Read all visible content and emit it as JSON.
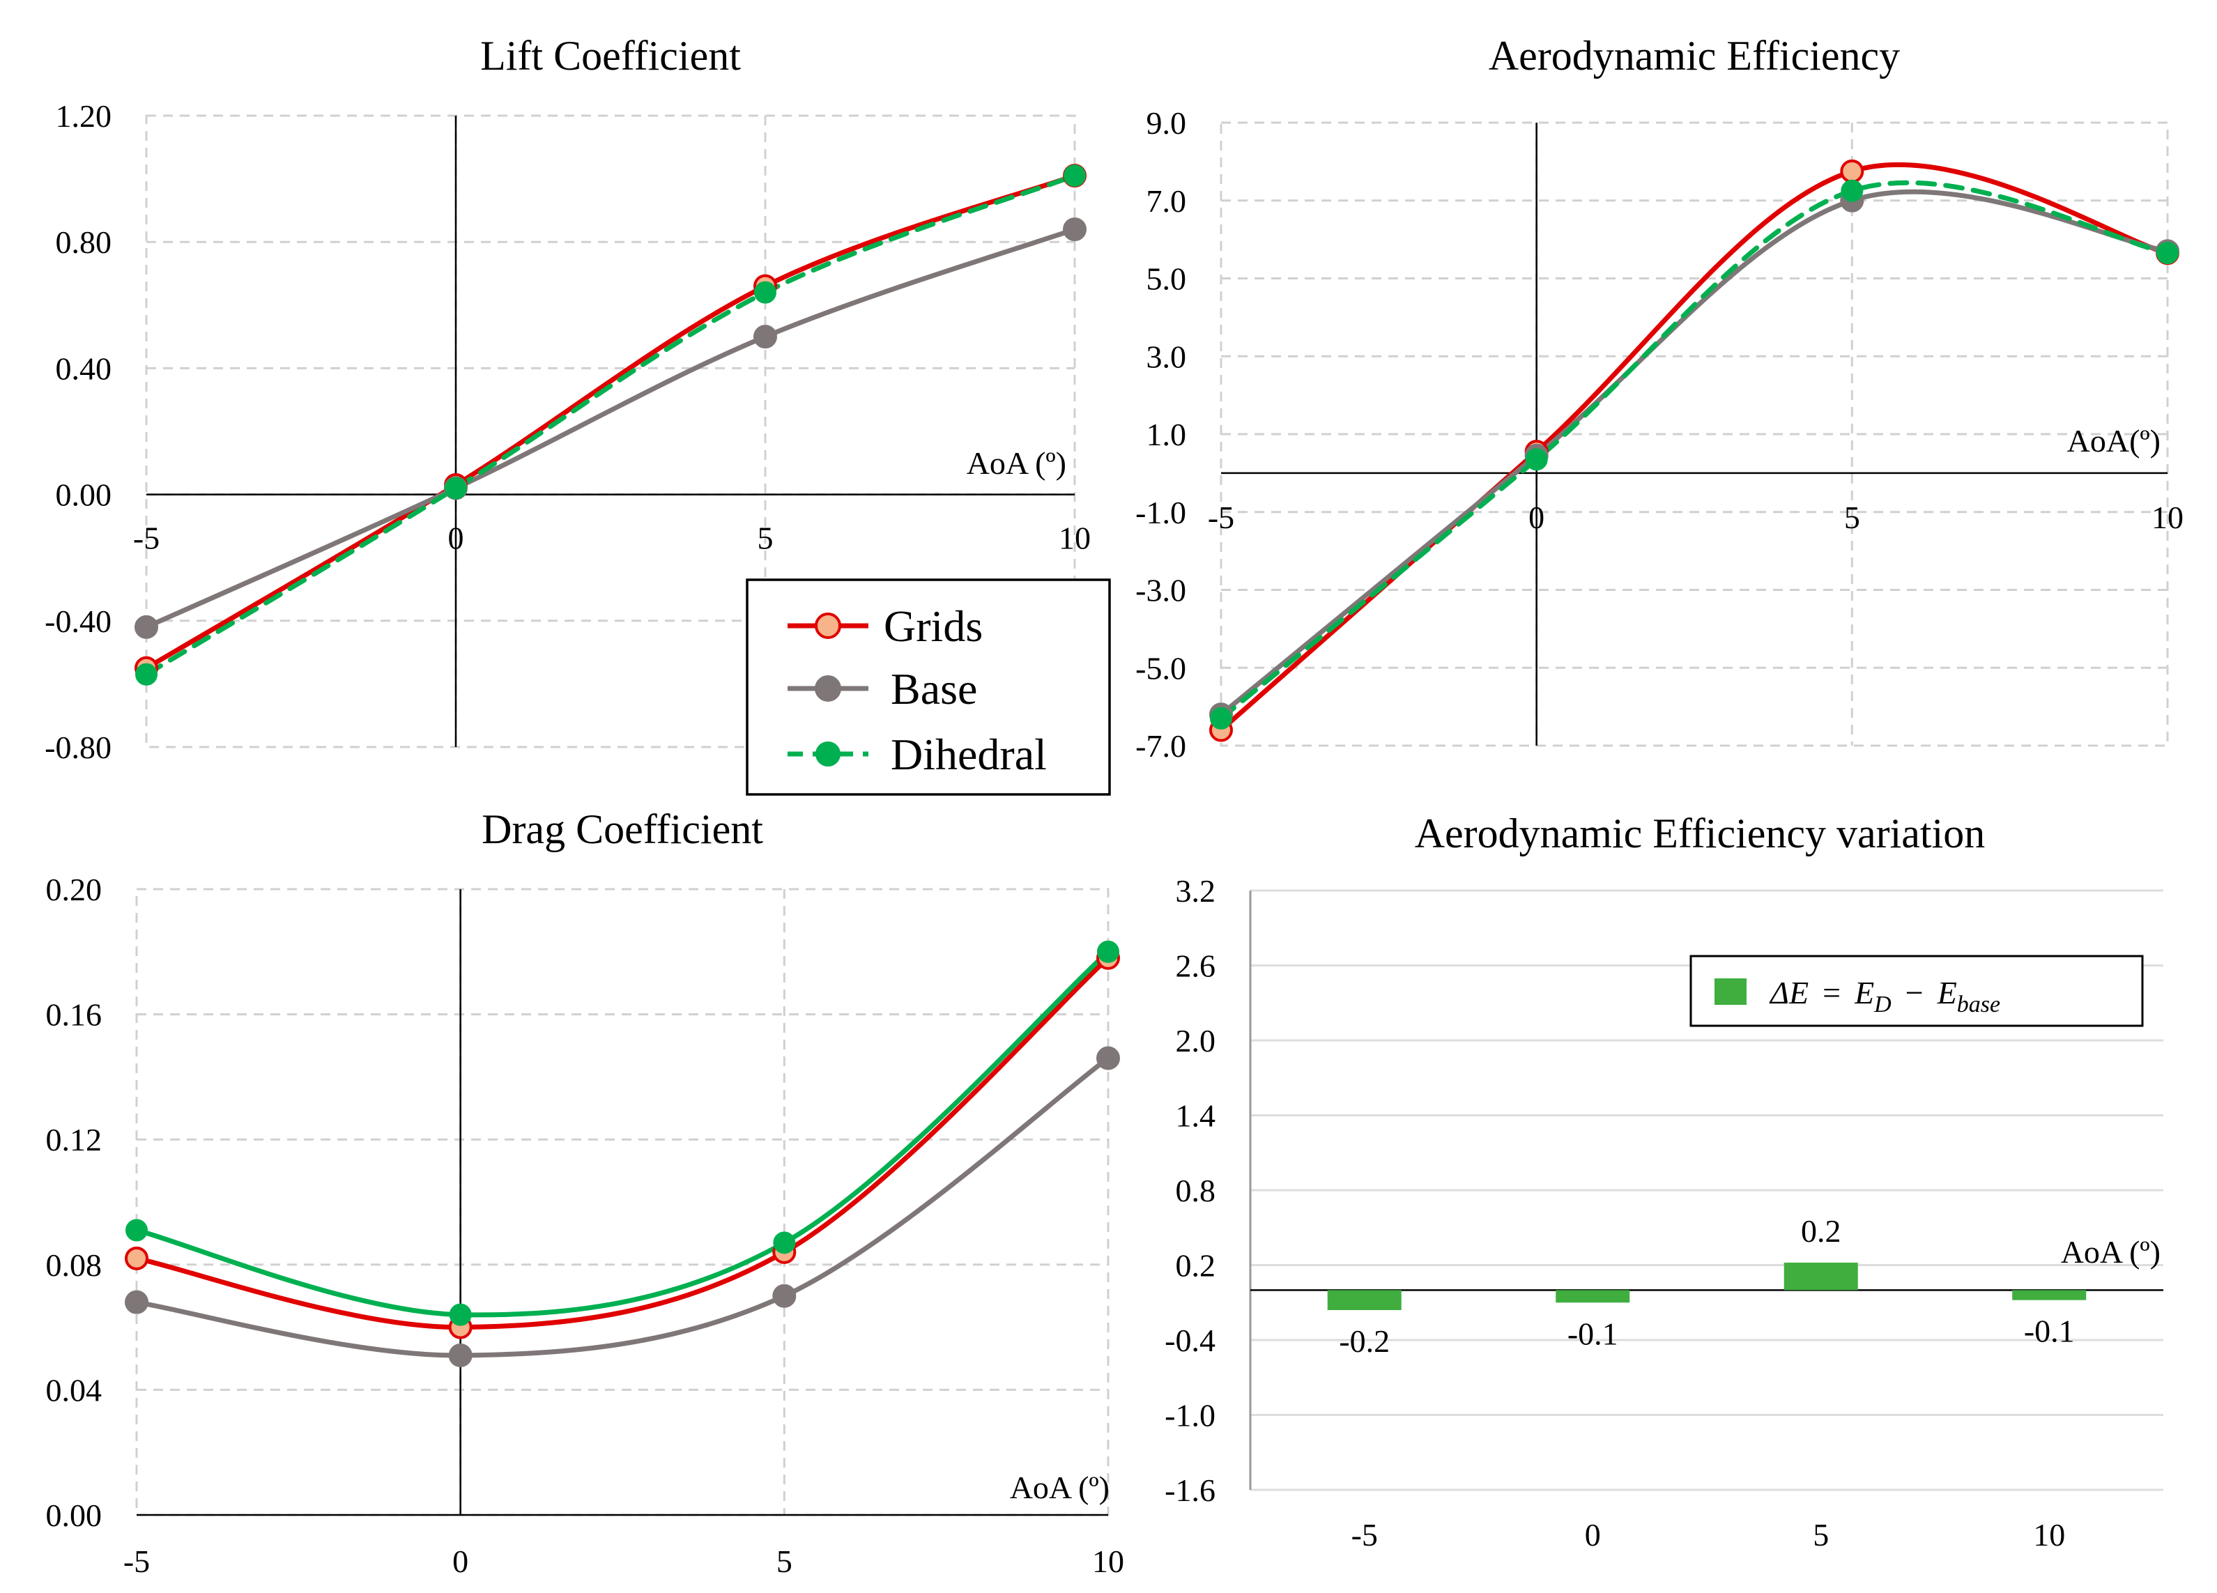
{
  "colors": {
    "grids": "#e00000",
    "grids_marker": "#f7b38a",
    "base": "#7f7777",
    "dihedral": "#00b050",
    "bar": "#3fae3f"
  },
  "legend": {
    "items": [
      "Grids",
      "Base",
      "Dihedral"
    ]
  },
  "chart_data": [
    {
      "id": "lift",
      "type": "line",
      "title": "Lift Coefficient",
      "xlabel": "AoA (º)",
      "x": [
        -5,
        0,
        5,
        10
      ],
      "xticks": [
        "-5",
        "0",
        "5",
        "10"
      ],
      "ylim": [
        -0.8,
        1.2
      ],
      "yticks": [
        1.2,
        0.8,
        0.4,
        0.0,
        -0.4,
        -0.8
      ],
      "ytick_labels": [
        "1.20",
        "0.80",
        "0.40",
        "0.00",
        "-0.40",
        "-0.80"
      ],
      "series": [
        {
          "name": "Grids",
          "values": [
            -0.55,
            0.03,
            0.66,
            1.01
          ]
        },
        {
          "name": "Base",
          "values": [
            -0.42,
            0.02,
            0.5,
            0.84
          ]
        },
        {
          "name": "Dihedral",
          "values": [
            -0.57,
            0.02,
            0.64,
            1.01
          ]
        }
      ]
    },
    {
      "id": "eff",
      "type": "line",
      "title": "Aerodynamic Efficiency",
      "xlabel": "AoA(º)",
      "x": [
        -5,
        0,
        5,
        10
      ],
      "xticks": [
        "-5",
        "0",
        "5",
        "10"
      ],
      "ylim": [
        -7.0,
        9.0
      ],
      "yticks": [
        9,
        7,
        5,
        3,
        1,
        -1,
        -3,
        -5,
        -7
      ],
      "ytick_labels": [
        "9.0",
        "7.0",
        "5.0",
        "3.0",
        "1.0",
        "-1.0",
        "-3.0",
        "-5.0",
        "-7.0"
      ],
      "series": [
        {
          "name": "Grids",
          "values": [
            -6.6,
            0.55,
            7.75,
            5.65
          ]
        },
        {
          "name": "Base",
          "values": [
            -6.2,
            0.45,
            7.0,
            5.7
          ]
        },
        {
          "name": "Dihedral",
          "values": [
            -6.3,
            0.35,
            7.25,
            5.65
          ]
        }
      ]
    },
    {
      "id": "drag",
      "type": "line",
      "title": "Drag Coefficient",
      "xlabel": "AoA (º)",
      "x": [
        -5,
        0,
        5,
        10
      ],
      "xticks": [
        "-5",
        "0",
        "5",
        "10"
      ],
      "ylim": [
        0.0,
        0.2
      ],
      "yticks": [
        0.2,
        0.16,
        0.12,
        0.08,
        0.04,
        0.0
      ],
      "ytick_labels": [
        "0.20",
        "0.16",
        "0.12",
        "0.08",
        "0.04",
        "0.00"
      ],
      "series": [
        {
          "name": "Grids",
          "values": [
            0.082,
            0.06,
            0.084,
            0.178
          ]
        },
        {
          "name": "Base",
          "values": [
            0.068,
            0.051,
            0.07,
            0.146
          ]
        },
        {
          "name": "Dihedral",
          "values": [
            0.091,
            0.064,
            0.087,
            0.18
          ]
        }
      ]
    },
    {
      "id": "var",
      "type": "bar",
      "title": "Aerodynamic Efficiency variation",
      "xlabel": "AoA (º)",
      "categories": [
        "-5",
        "0",
        "5",
        "10"
      ],
      "ylim": [
        -1.6,
        3.2
      ],
      "yticks": [
        3.2,
        2.6,
        2.0,
        1.4,
        0.8,
        0.2,
        -0.4,
        -1.0,
        -1.6
      ],
      "ytick_labels": [
        "3.2",
        "2.6",
        "2.0",
        "1.4",
        "0.8",
        "0.2",
        "-0.4",
        "-1.0",
        "-1.6"
      ],
      "legend": "ΔE = E_D − E_base",
      "legend_parts": {
        "delta_e": "ΔE",
        "eq": "=",
        "e": "E",
        "d_sub": "D",
        "minus": "−",
        "base_sub": "base"
      },
      "values": [
        -0.16,
        -0.1,
        0.22,
        -0.08
      ],
      "data_labels": [
        "-0.2",
        "-0.1",
        "0.2",
        "-0.1"
      ]
    }
  ]
}
